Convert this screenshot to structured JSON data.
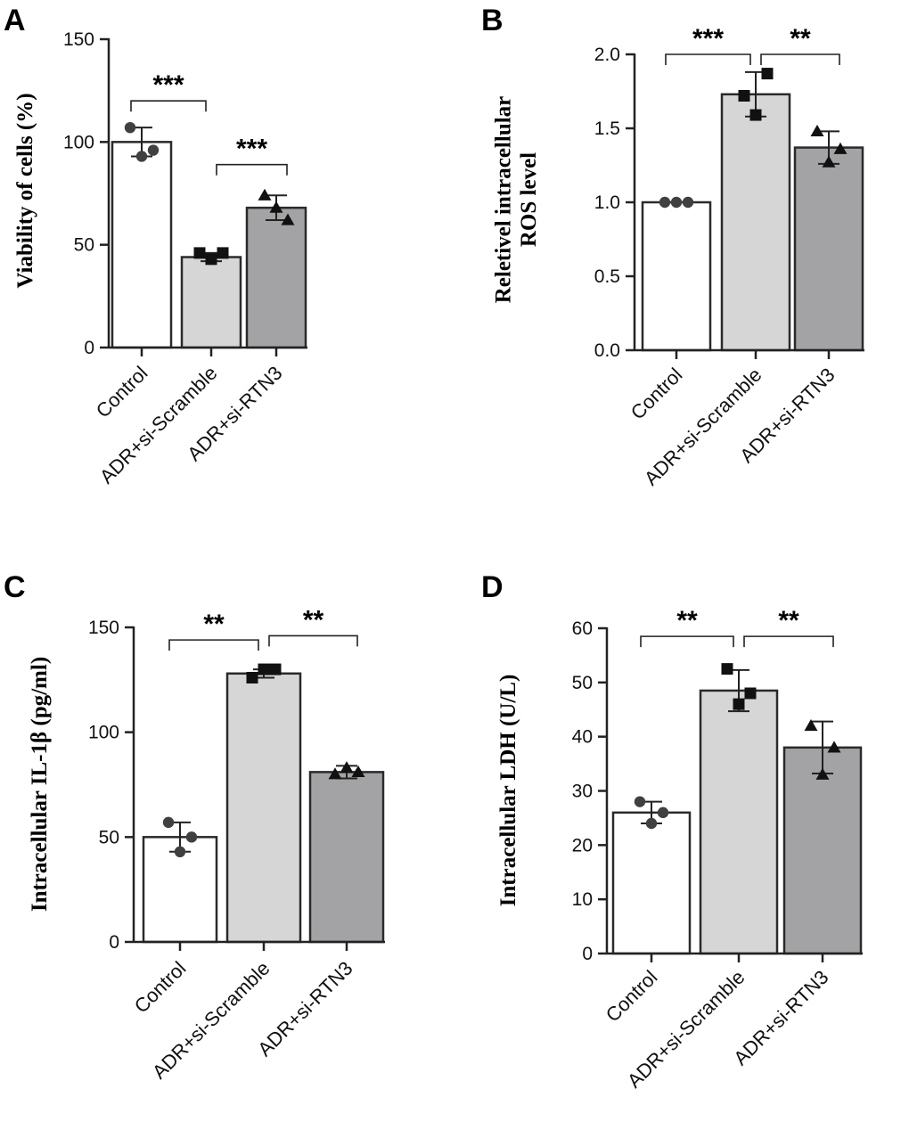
{
  "chart_data": [
    {
      "panel": "A",
      "type": "bar",
      "categories": [
        "Control",
        "ADR+si-Scramble",
        "ADR+si-RTN3"
      ],
      "values": [
        100,
        44,
        68
      ],
      "errors": [
        7,
        2,
        6
      ],
      "points": [
        [
          107,
          93,
          96
        ],
        [
          46,
          43,
          46
        ],
        [
          74,
          68,
          62
        ]
      ],
      "markers": [
        "circle",
        "square",
        "triangle"
      ],
      "colors": [
        "#ffffff",
        "#d6d6d6",
        "#a3a3a5"
      ],
      "ylabel": "Viability of cells (%)",
      "ylim": [
        0,
        150
      ],
      "ticks": [
        0,
        50,
        100,
        150
      ],
      "tick_labels": [
        "0",
        "50",
        "100",
        "150"
      ],
      "significance": [
        {
          "from": 0,
          "to": 1,
          "label": "***",
          "y": 120
        },
        {
          "from": 1,
          "to": 2,
          "label": "***",
          "y": 89
        }
      ]
    },
    {
      "panel": "B",
      "type": "bar",
      "categories": [
        "Control",
        "ADR+si-Scramble",
        "ADR+si-RTN3"
      ],
      "values": [
        1.0,
        1.73,
        1.37
      ],
      "errors": [
        0,
        0.15,
        0.11
      ],
      "points": [
        [
          1.0,
          1.0,
          1.0
        ],
        [
          1.72,
          1.59,
          1.87
        ],
        [
          1.48,
          1.27,
          1.36
        ]
      ],
      "markers": [
        "circle",
        "square",
        "triangle"
      ],
      "colors": [
        "#ffffff",
        "#d6d6d6",
        "#a3a3a5"
      ],
      "ylabel": "Reletivel intracellular ROS level",
      "ylim": [
        0,
        2.0
      ],
      "ticks": [
        0,
        0.5,
        1.0,
        1.5,
        2.0
      ],
      "tick_labels": [
        "0.0",
        "0.5",
        "1.0",
        "1.5",
        "2.0"
      ],
      "significance": [
        {
          "from": 0,
          "to": 1,
          "label": "***",
          "y": 2.0
        },
        {
          "from": 1,
          "to": 2,
          "label": "**",
          "y": 2.0
        }
      ]
    },
    {
      "panel": "C",
      "type": "bar",
      "categories": [
        "Control",
        "ADR+si-Scramble",
        "ADR+si-RTN3"
      ],
      "values": [
        50,
        128,
        81
      ],
      "errors": [
        7,
        2,
        3
      ],
      "points": [
        [
          57,
          43,
          50
        ],
        [
          126,
          130,
          130
        ],
        [
          80,
          83,
          81
        ]
      ],
      "markers": [
        "circle",
        "square",
        "triangle"
      ],
      "colors": [
        "#ffffff",
        "#d6d6d6",
        "#a3a3a5"
      ],
      "ylabel": "Intracellular IL-1β (pg/ml)",
      "ylim": [
        0,
        150
      ],
      "ticks": [
        0,
        50,
        100,
        150
      ],
      "tick_labels": [
        "0",
        "50",
        "100",
        "150"
      ],
      "significance": [
        {
          "from": 0,
          "to": 1,
          "label": "**",
          "y": 144
        },
        {
          "from": 1,
          "to": 2,
          "label": "**",
          "y": 146
        }
      ]
    },
    {
      "panel": "D",
      "type": "bar",
      "categories": [
        "Control",
        "ADR+si-Scramble",
        "ADR+si-RTN3"
      ],
      "values": [
        26,
        48.5,
        38
      ],
      "errors": [
        2,
        3.8,
        4.8
      ],
      "points": [
        [
          28,
          24,
          26
        ],
        [
          52.5,
          46,
          48
        ],
        [
          42,
          33,
          38
        ]
      ],
      "markers": [
        "circle",
        "square",
        "triangle"
      ],
      "colors": [
        "#ffffff",
        "#d6d6d6",
        "#a3a3a5"
      ],
      "ylabel": "Intracellular LDH (U/L)",
      "ylim": [
        0,
        60
      ],
      "ticks": [
        0,
        10,
        20,
        30,
        40,
        50,
        60
      ],
      "tick_labels": [
        "0",
        "10",
        "20",
        "30",
        "40",
        "50",
        "60"
      ],
      "significance": [
        {
          "from": 0,
          "to": 1,
          "label": "**",
          "y": 58.5
        },
        {
          "from": 1,
          "to": 2,
          "label": "**",
          "y": 58.5
        }
      ]
    }
  ]
}
